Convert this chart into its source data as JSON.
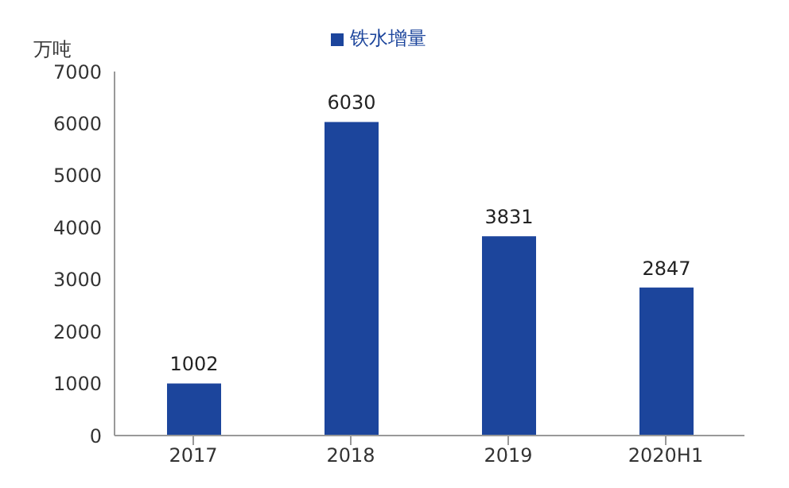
{
  "chart_data": {
    "type": "bar",
    "ylabel": "万吨",
    "categories": [
      "2017",
      "2018",
      "2019",
      "2020H1"
    ],
    "series": [
      {
        "name": "铁水增量",
        "color": "#1c459c",
        "values": [
          1002,
          6030,
          3831,
          2847
        ]
      }
    ],
    "ylim": [
      0,
      7000
    ],
    "yticks": [
      0,
      1000,
      2000,
      3000,
      4000,
      5000,
      6000,
      7000
    ],
    "data_labels": true,
    "legend": "top",
    "grid": false
  }
}
